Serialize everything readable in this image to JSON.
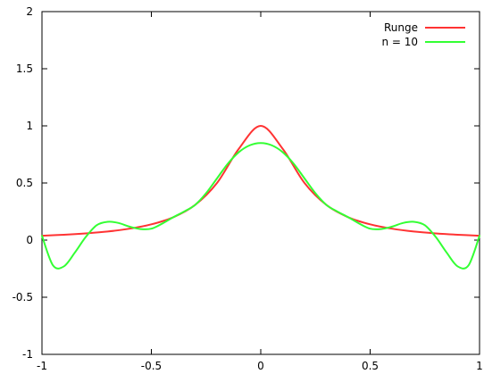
{
  "chart_data": {
    "type": "line",
    "title": "",
    "xlabel": "",
    "ylabel": "",
    "xlim": [
      -1,
      1
    ],
    "ylim": [
      -1,
      2
    ],
    "grid": false,
    "legend_position": "top-right",
    "x_ticks": [
      {
        "value": -1,
        "label": "-1"
      },
      {
        "value": -0.5,
        "label": "-0.5"
      },
      {
        "value": 0,
        "label": "0"
      },
      {
        "value": 0.5,
        "label": "0.5"
      },
      {
        "value": 1,
        "label": "1"
      }
    ],
    "y_ticks": [
      {
        "value": -1,
        "label": "-1"
      },
      {
        "value": -0.5,
        "label": "-0.5"
      },
      {
        "value": 0,
        "label": "0"
      },
      {
        "value": 0.5,
        "label": "0.5"
      },
      {
        "value": 1,
        "label": "1"
      },
      {
        "value": 1.5,
        "label": "1.5"
      },
      {
        "value": 2,
        "label": "2"
      }
    ],
    "series": [
      {
        "name": "Runge",
        "color": "#ff3333",
        "x": [
          -1,
          -0.9,
          -0.8,
          -0.7,
          -0.6,
          -0.5,
          -0.4,
          -0.3,
          -0.2,
          -0.1,
          0,
          0.1,
          0.2,
          0.3,
          0.4,
          0.5,
          0.6,
          0.7,
          0.8,
          0.9,
          1
        ],
        "y": [
          0.038,
          0.047,
          0.059,
          0.075,
          0.1,
          0.138,
          0.2,
          0.308,
          0.5,
          0.8,
          1.0,
          0.8,
          0.5,
          0.308,
          0.2,
          0.138,
          0.1,
          0.075,
          0.059,
          0.047,
          0.038
        ]
      },
      {
        "name": "n = 10",
        "color": "#33ff33",
        "x": [
          -1,
          -0.95,
          -0.9,
          -0.85,
          -0.8,
          -0.75,
          -0.7,
          -0.65,
          -0.6,
          -0.55,
          -0.5,
          -0.45,
          -0.4,
          -0.35,
          -0.3,
          -0.25,
          -0.2,
          -0.15,
          -0.1,
          -0.05,
          0,
          0.05,
          0.1,
          0.15,
          0.2,
          0.25,
          0.3,
          0.35,
          0.4,
          0.45,
          0.5,
          0.55,
          0.6,
          0.65,
          0.7,
          0.75,
          0.8,
          0.85,
          0.9,
          0.95,
          1
        ],
        "y": [
          0.038,
          -0.22,
          -0.23,
          -0.11,
          0.027,
          0.13,
          0.16,
          0.15,
          0.118,
          0.097,
          0.1,
          0.145,
          0.2,
          0.25,
          0.308,
          0.41,
          0.54,
          0.67,
          0.77,
          0.83,
          0.85,
          0.83,
          0.77,
          0.67,
          0.54,
          0.41,
          0.308,
          0.25,
          0.2,
          0.145,
          0.1,
          0.097,
          0.118,
          0.15,
          0.16,
          0.13,
          0.027,
          -0.11,
          -0.23,
          -0.22,
          0.038
        ]
      }
    ]
  }
}
